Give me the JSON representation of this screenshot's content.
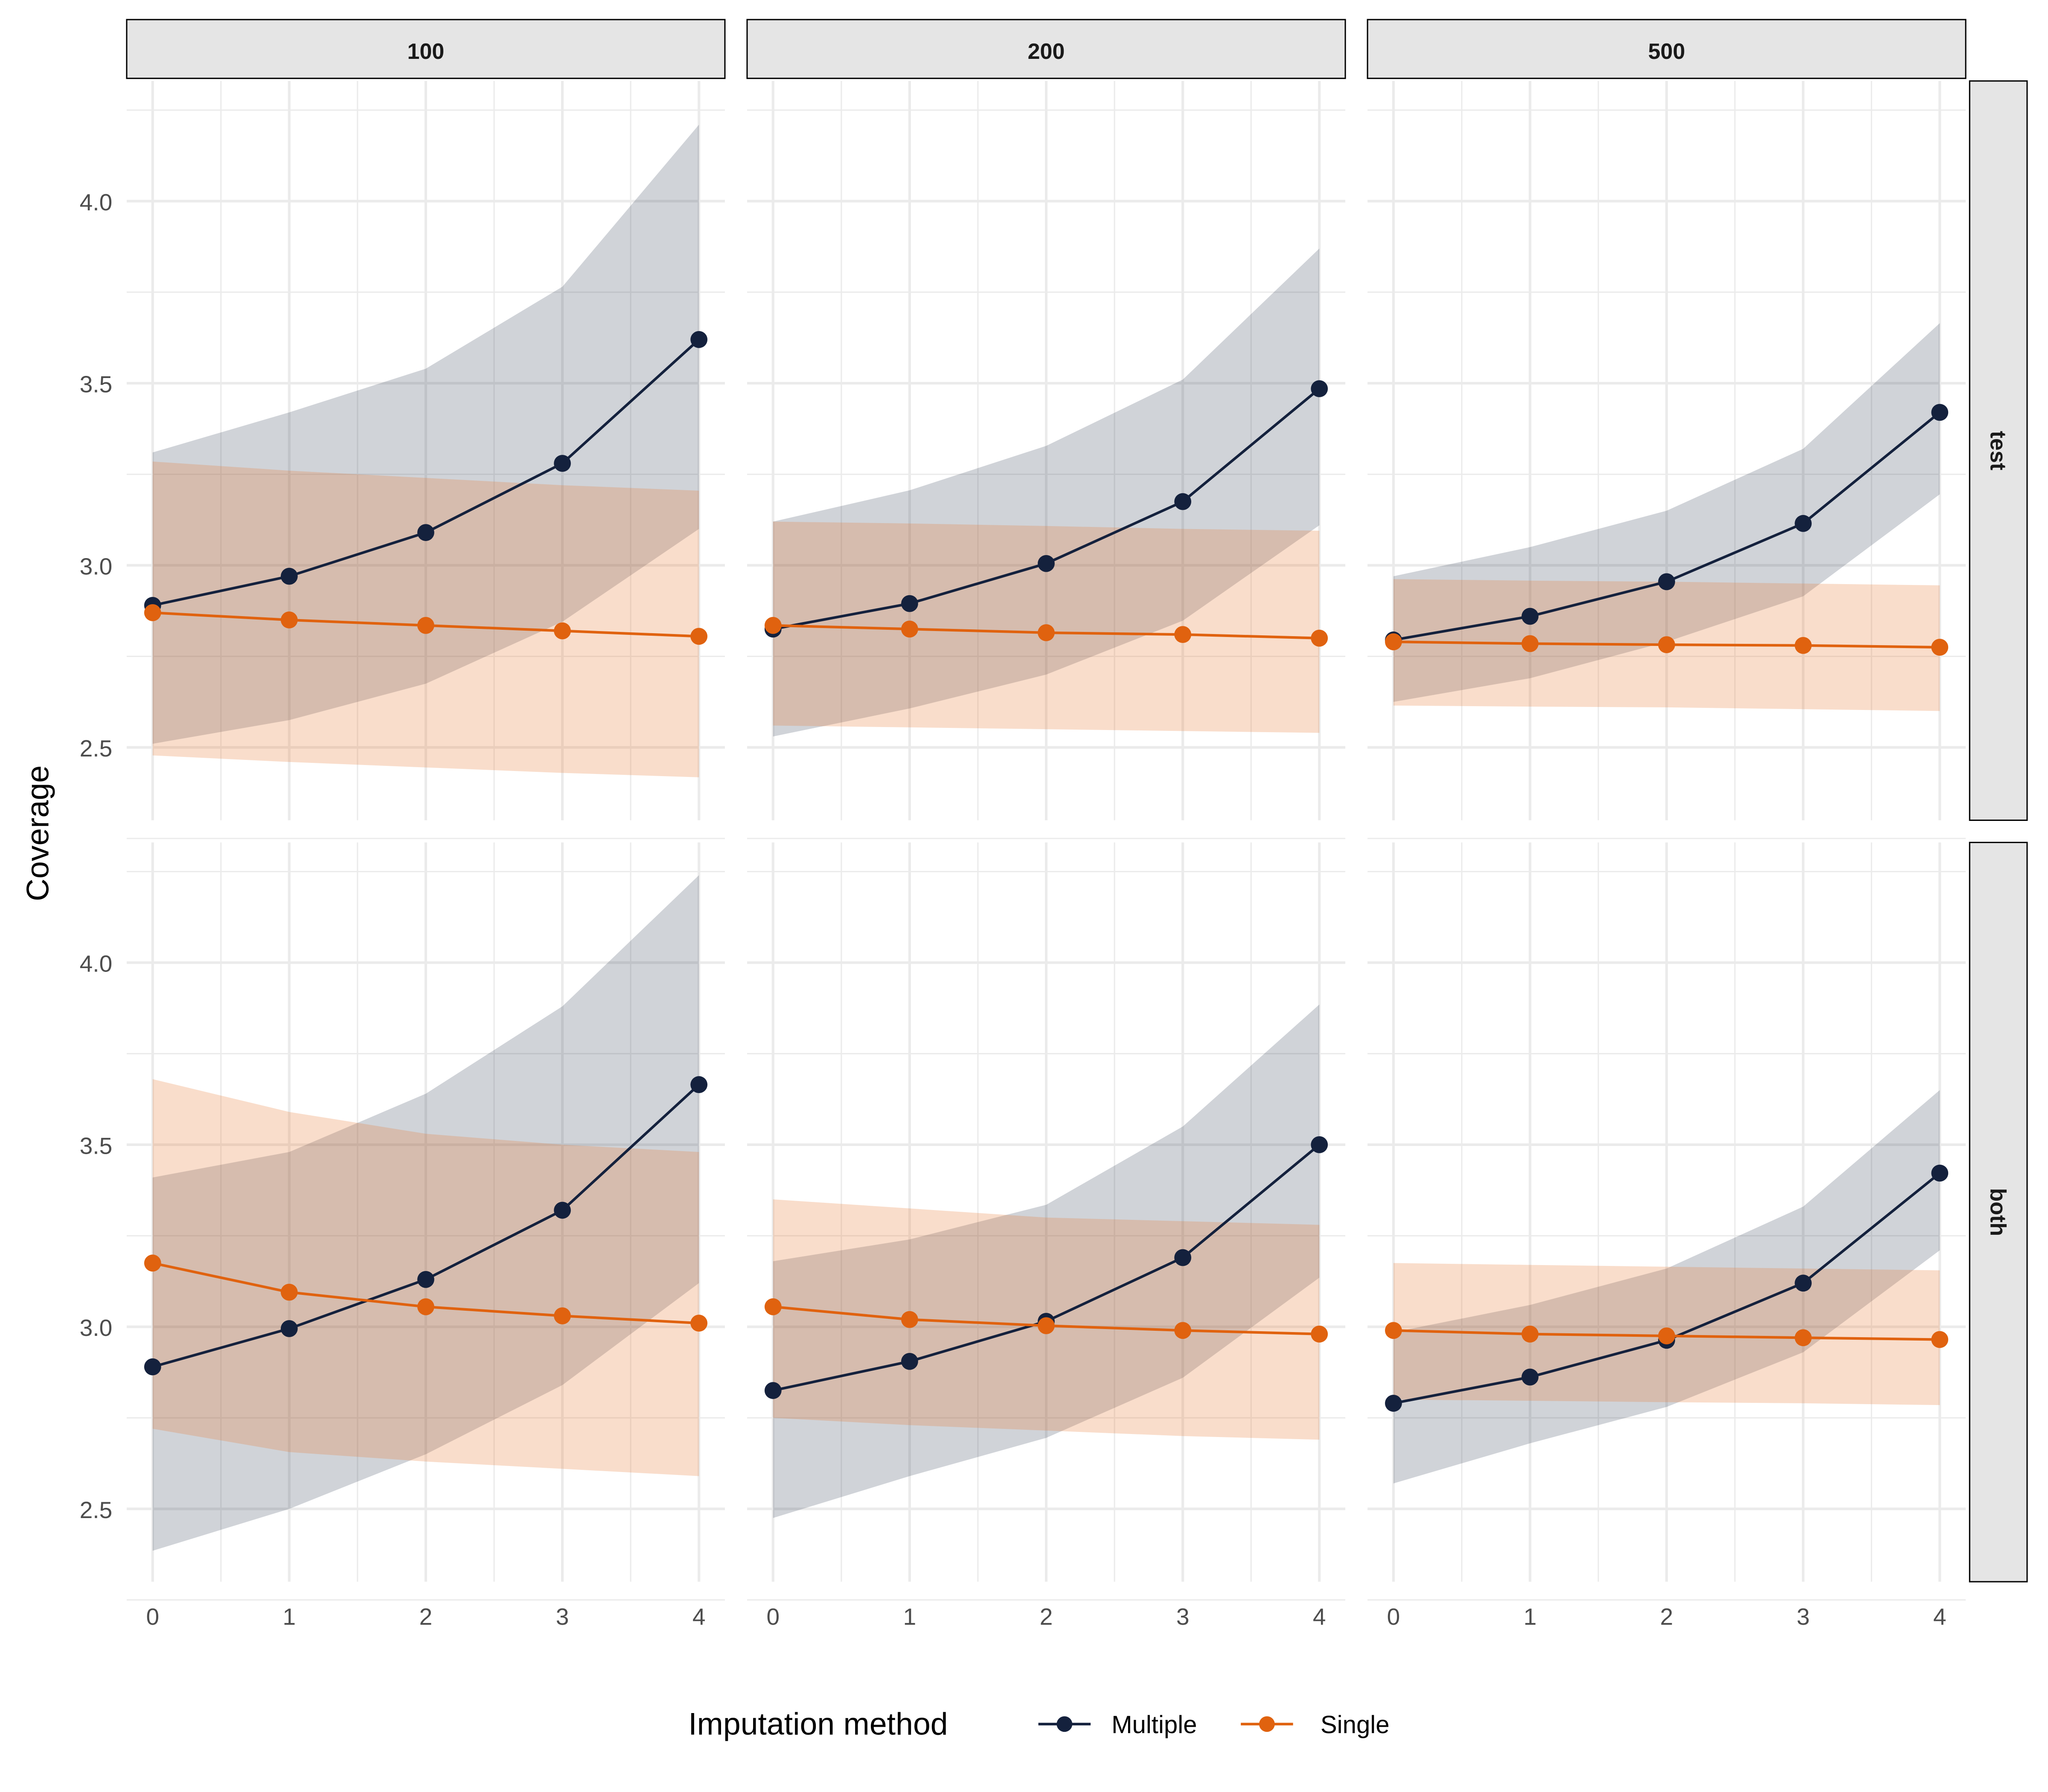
{
  "chart_data": {
    "type": "line",
    "ylabel": "Coverage",
    "xlabel": "",
    "x": [
      0,
      1,
      2,
      3,
      4
    ],
    "x_ticks": [
      "0",
      "1",
      "2",
      "3",
      "4"
    ],
    "y_ticks": [
      "2.5",
      "3.0",
      "3.5",
      "4.0"
    ],
    "ylim": [
      2.3,
      4.33
    ],
    "xlim": [
      -0.19,
      4.19
    ],
    "grid": true,
    "col_facets": [
      "100",
      "200",
      "500"
    ],
    "row_facets": [
      "test",
      "both"
    ],
    "legend": {
      "title": "Imputation method",
      "position": "bottom",
      "entries": [
        "Multiple",
        "Single"
      ]
    },
    "colors": {
      "Multiple": "#14213d",
      "Single": "#e0620f"
    },
    "panels": [
      {
        "row": "test",
        "col": "100",
        "series": [
          {
            "name": "Multiple",
            "values": [
              2.89,
              2.97,
              3.09,
              3.28,
              3.62
            ],
            "lower": [
              2.51,
              2.575,
              2.675,
              2.845,
              3.1
            ],
            "upper": [
              3.31,
              3.42,
              3.54,
              3.765,
              4.21
            ]
          },
          {
            "name": "Single",
            "values": [
              2.87,
              2.85,
              2.835,
              2.82,
              2.805
            ],
            "lower": [
              2.478,
              2.46,
              2.445,
              2.43,
              2.418
            ],
            "upper": [
              3.285,
              3.26,
              3.24,
              3.22,
              3.205
            ]
          }
        ]
      },
      {
        "row": "test",
        "col": "200",
        "series": [
          {
            "name": "Multiple",
            "values": [
              2.825,
              2.895,
              3.005,
              3.175,
              3.485
            ],
            "lower": [
              2.53,
              2.607,
              2.7,
              2.848,
              3.11
            ],
            "upper": [
              3.12,
              3.206,
              3.328,
              3.51,
              3.87
            ]
          },
          {
            "name": "Single",
            "values": [
              2.835,
              2.825,
              2.815,
              2.81,
              2.8
            ],
            "lower": [
              2.56,
              2.555,
              2.55,
              2.545,
              2.54
            ],
            "upper": [
              3.12,
              3.115,
              3.108,
              3.1,
              3.095
            ]
          }
        ]
      },
      {
        "row": "test",
        "col": "500",
        "series": [
          {
            "name": "Multiple",
            "values": [
              2.795,
              2.86,
              2.955,
              3.115,
              3.42
            ],
            "lower": [
              2.625,
              2.69,
              2.79,
              2.915,
              3.195
            ],
            "upper": [
              2.97,
              3.05,
              3.15,
              3.32,
              3.665
            ]
          },
          {
            "name": "Single",
            "values": [
              2.79,
              2.785,
              2.782,
              2.78,
              2.775
            ],
            "lower": [
              2.615,
              2.612,
              2.61,
              2.605,
              2.6
            ],
            "upper": [
              2.962,
              2.958,
              2.955,
              2.95,
              2.945
            ]
          }
        ]
      },
      {
        "row": "both",
        "col": "100",
        "series": [
          {
            "name": "Multiple",
            "values": [
              2.89,
              2.995,
              3.13,
              3.32,
              3.665
            ],
            "lower": [
              2.385,
              2.5,
              2.65,
              2.84,
              3.12
            ],
            "upper": [
              3.41,
              3.48,
              3.64,
              3.88,
              4.24
            ]
          },
          {
            "name": "Single",
            "values": [
              3.175,
              3.095,
              3.055,
              3.03,
              3.01
            ],
            "lower": [
              2.72,
              2.656,
              2.63,
              2.61,
              2.59
            ],
            "upper": [
              3.68,
              3.59,
              3.53,
              3.5,
              3.48
            ]
          }
        ]
      },
      {
        "row": "both",
        "col": "200",
        "series": [
          {
            "name": "Multiple",
            "values": [
              2.825,
              2.905,
              3.015,
              3.19,
              3.5
            ],
            "lower": [
              2.475,
              2.59,
              2.695,
              2.86,
              3.135
            ],
            "upper": [
              3.18,
              3.24,
              3.335,
              3.55,
              3.885
            ]
          },
          {
            "name": "Single",
            "values": [
              3.055,
              3.02,
              3.003,
              2.99,
              2.98
            ],
            "lower": [
              2.75,
              2.73,
              2.715,
              2.7,
              2.69
            ],
            "upper": [
              3.35,
              3.325,
              3.3,
              3.29,
              3.28
            ]
          }
        ]
      },
      {
        "row": "both",
        "col": "500",
        "series": [
          {
            "name": "Multiple",
            "values": [
              2.79,
              2.862,
              2.963,
              3.12,
              3.422
            ],
            "lower": [
              2.57,
              2.68,
              2.78,
              2.93,
              3.21
            ],
            "upper": [
              2.985,
              3.06,
              3.16,
              3.33,
              3.65
            ]
          },
          {
            "name": "Single",
            "values": [
              2.99,
              2.98,
              2.975,
              2.97,
              2.965
            ],
            "lower": [
              2.8,
              2.797,
              2.793,
              2.79,
              2.785
            ],
            "upper": [
              3.175,
              3.17,
              3.165,
              3.16,
              3.155
            ]
          }
        ]
      }
    ]
  }
}
